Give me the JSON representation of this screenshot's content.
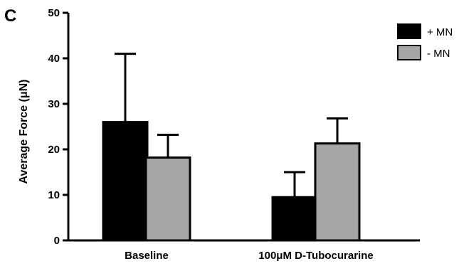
{
  "panel_label": "C",
  "colors": {
    "plus_mn": "#000000",
    "minus_mn": "#a6a6a6",
    "axis": "#000000"
  },
  "chart_data": {
    "type": "bar",
    "ylabel": "Average  Force (μN)",
    "xlabel": "",
    "ylim": [
      0,
      50
    ],
    "yticks": [
      0,
      10,
      20,
      30,
      40,
      50
    ],
    "categories": [
      "Baseline",
      "100μM D-Tubocurarine"
    ],
    "series": [
      {
        "name": "+ MN",
        "values": [
          26,
          9.5
        ],
        "error": [
          15,
          5.5
        ]
      },
      {
        "name": "- MN",
        "values": [
          18.2,
          21.3
        ],
        "error": [
          5,
          5.5
        ]
      }
    ],
    "legend_position": "top-right",
    "grid": false
  }
}
